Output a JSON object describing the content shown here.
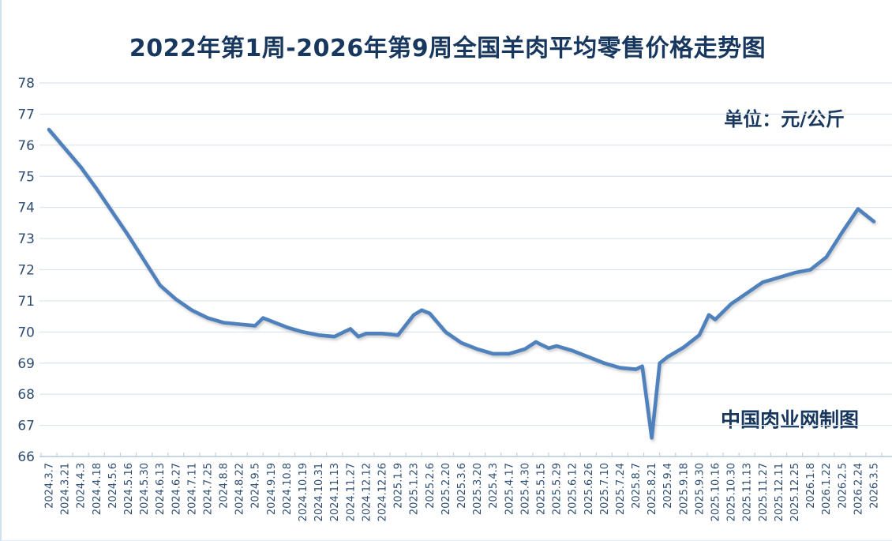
{
  "header": {
    "title": "2022年第1周-2026年第9周全国羊肉平均零售价格走势图"
  },
  "chart": {
    "unit_label": "单位：元/公斤",
    "watermark": "中国肉业网制图"
  },
  "chart_data": {
    "type": "line",
    "title": "2022年第1周-2026年第9周全国羊肉平均零售价格走势图",
    "unit": "元/公斤",
    "xlabel": "",
    "ylabel": "",
    "ylim": [
      66,
      78
    ],
    "ytick_step": 1,
    "grid": true,
    "legend_position": "none",
    "line_color": "#4f81bd",
    "grid_color": "#dae3ee",
    "axis_color": "#b5c8da",
    "tick_color": "#c2d1e0",
    "label_color": "#2e4d71",
    "categories": [
      "2024.3.7",
      "2024.3.21",
      "2024.4.3",
      "2024.4.18",
      "2024.5.6",
      "2024.5.16",
      "2024.5.30",
      "2024.6.13",
      "2024.6.27",
      "2024.7.11",
      "2024.7.25",
      "2024.8.8",
      "2024.8.22",
      "2024.9.5",
      "2024.9.19",
      "2024.10.8",
      "2024.10.19",
      "2024.10.31",
      "2024.11.13",
      "2024.11.27",
      "2024.12.12",
      "2024.12.26",
      "2025.1.9",
      "2025.1.23",
      "2025.2.6",
      "2025.2.20",
      "2025.3.6",
      "2025.3.20",
      "2025.4.3",
      "2025.4.17",
      "2025.4.30",
      "2025.5.15",
      "2025.5.29",
      "2025.6.12",
      "2025.6.26",
      "2025.7.10",
      "2025.7.24",
      "2025.8.7",
      "2025.8.21",
      "2025.9.4",
      "2025.9.18",
      "2025.9.30",
      "2025.10.16",
      "2025.10.30",
      "2025.11.13",
      "2025.11.27",
      "2025.12.11",
      "2025.12.25",
      "2026.1.8",
      "2026.1.22",
      "2026.2.5",
      "2026.2.24",
      "2026.3.5"
    ],
    "values": [
      76.5,
      75.9,
      75.3,
      74.6,
      73.85,
      73.1,
      72.3,
      71.5,
      71.05,
      70.7,
      70.45,
      70.3,
      70.25,
      70.2,
      70.35,
      70.15,
      70.0,
      69.9,
      69.85,
      70.1,
      69.95,
      69.95,
      69.9,
      70.55,
      70.6,
      70.0,
      69.65,
      69.45,
      69.3,
      69.3,
      69.45,
      69.6,
      69.55,
      69.4,
      69.2,
      69.0,
      68.85,
      68.8,
      66.6,
      69.2,
      69.5,
      69.9,
      70.4,
      70.9,
      71.25,
      71.6,
      71.75,
      71.9,
      72.0,
      72.4,
      73.2,
      73.95,
      73.55
    ],
    "extra_points": [
      [
        13.5,
        70.45
      ],
      [
        19.5,
        69.85
      ],
      [
        23.5,
        70.7
      ],
      [
        30.7,
        69.68
      ],
      [
        31.5,
        69.48
      ],
      [
        37.4,
        68.9
      ],
      [
        38.5,
        69.0
      ],
      [
        41.6,
        70.55
      ]
    ]
  }
}
